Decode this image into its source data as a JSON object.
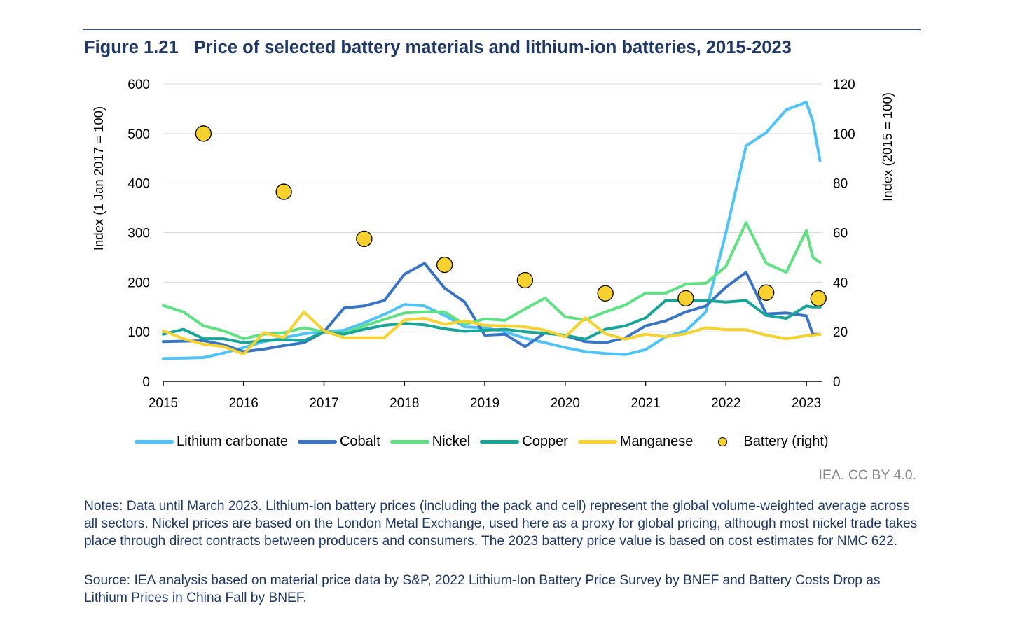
{
  "figure": {
    "number": "Figure 1.21",
    "title": "Price of selected battery materials and lithium-ion batteries, 2015-2023"
  },
  "chart_data": {
    "type": "line",
    "y_left_label": "Index (1 Jan 2017 = 100)",
    "y_right_label": "Index (2015 = 100)",
    "y_left_ticks": [
      "0",
      "100",
      "200",
      "300",
      "400",
      "500",
      "600"
    ],
    "y_right_ticks": [
      "0",
      "20",
      "40",
      "60",
      "80",
      "100",
      "120"
    ],
    "x_tick_labels": [
      "2015",
      "2016",
      "2017",
      "2018",
      "2019",
      "2020",
      "2021",
      "2022",
      "2023"
    ],
    "ylim_left": [
      0,
      600
    ],
    "ylim_right": [
      0,
      120
    ],
    "xlim": [
      2015,
      2023.2
    ],
    "grid": "horizontal",
    "legend_position": "bottom",
    "series": [
      {
        "name": "Lithium carbonate",
        "color": "#4fc3f7",
        "axis": "left",
        "points": [
          [
            2015,
            46
          ],
          [
            2015.25,
            47
          ],
          [
            2015.5,
            48
          ],
          [
            2015.75,
            57
          ],
          [
            2016,
            68
          ],
          [
            2016.25,
            80
          ],
          [
            2016.5,
            88
          ],
          [
            2016.75,
            96
          ],
          [
            2017,
            100
          ],
          [
            2017.25,
            103
          ],
          [
            2017.5,
            118
          ],
          [
            2017.75,
            135
          ],
          [
            2018,
            155
          ],
          [
            2018.25,
            152
          ],
          [
            2018.5,
            133
          ],
          [
            2018.75,
            110
          ],
          [
            2019,
            108
          ],
          [
            2019.25,
            100
          ],
          [
            2019.5,
            87
          ],
          [
            2019.75,
            78
          ],
          [
            2020,
            68
          ],
          [
            2020.25,
            60
          ],
          [
            2020.5,
            56
          ],
          [
            2020.75,
            54
          ],
          [
            2021,
            64
          ],
          [
            2021.25,
            90
          ],
          [
            2021.5,
            102
          ],
          [
            2021.75,
            140
          ],
          [
            2022,
            300
          ],
          [
            2022.25,
            475
          ],
          [
            2022.5,
            502
          ],
          [
            2022.75,
            548
          ],
          [
            2023,
            563
          ],
          [
            2023.08,
            525
          ],
          [
            2023.17,
            445
          ]
        ]
      },
      {
        "name": "Cobalt",
        "color": "#3a75c4",
        "axis": "left",
        "points": [
          [
            2015,
            80
          ],
          [
            2015.25,
            81
          ],
          [
            2015.5,
            82
          ],
          [
            2015.75,
            74
          ],
          [
            2016,
            60
          ],
          [
            2016.25,
            65
          ],
          [
            2016.5,
            72
          ],
          [
            2016.75,
            78
          ],
          [
            2017,
            100
          ],
          [
            2017.25,
            148
          ],
          [
            2017.5,
            152
          ],
          [
            2017.75,
            163
          ],
          [
            2018,
            216
          ],
          [
            2018.25,
            238
          ],
          [
            2018.5,
            188
          ],
          [
            2018.75,
            160
          ],
          [
            2019,
            93
          ],
          [
            2019.25,
            95
          ],
          [
            2019.5,
            70
          ],
          [
            2019.75,
            98
          ],
          [
            2020,
            92
          ],
          [
            2020.25,
            80
          ],
          [
            2020.5,
            78
          ],
          [
            2020.75,
            88
          ],
          [
            2021,
            112
          ],
          [
            2021.25,
            122
          ],
          [
            2021.5,
            140
          ],
          [
            2021.75,
            152
          ],
          [
            2022,
            190
          ],
          [
            2022.25,
            220
          ],
          [
            2022.5,
            136
          ],
          [
            2022.75,
            138
          ],
          [
            2023,
            132
          ],
          [
            2023.08,
            95
          ],
          [
            2023.17,
            95
          ]
        ]
      },
      {
        "name": "Nickel",
        "color": "#5fe083",
        "axis": "left",
        "points": [
          [
            2015,
            153
          ],
          [
            2015.25,
            140
          ],
          [
            2015.5,
            112
          ],
          [
            2015.75,
            102
          ],
          [
            2016,
            86
          ],
          [
            2016.25,
            95
          ],
          [
            2016.5,
            98
          ],
          [
            2016.75,
            108
          ],
          [
            2017,
            100
          ],
          [
            2017.25,
            97
          ],
          [
            2017.5,
            112
          ],
          [
            2017.75,
            125
          ],
          [
            2018,
            138
          ],
          [
            2018.25,
            140
          ],
          [
            2018.5,
            140
          ],
          [
            2018.75,
            115
          ],
          [
            2019,
            126
          ],
          [
            2019.25,
            123
          ],
          [
            2019.5,
            146
          ],
          [
            2019.75,
            168
          ],
          [
            2020,
            130
          ],
          [
            2020.25,
            124
          ],
          [
            2020.5,
            140
          ],
          [
            2020.75,
            154
          ],
          [
            2021,
            178
          ],
          [
            2021.25,
            178
          ],
          [
            2021.5,
            196
          ],
          [
            2021.75,
            198
          ],
          [
            2022,
            232
          ],
          [
            2022.25,
            320
          ],
          [
            2022.5,
            238
          ],
          [
            2022.75,
            220
          ],
          [
            2023,
            304
          ],
          [
            2023.08,
            250
          ],
          [
            2023.17,
            240
          ]
        ]
      },
      {
        "name": "Copper",
        "color": "#16a596",
        "axis": "left",
        "points": [
          [
            2015,
            95
          ],
          [
            2015.25,
            105
          ],
          [
            2015.5,
            86
          ],
          [
            2015.75,
            86
          ],
          [
            2016,
            78
          ],
          [
            2016.25,
            82
          ],
          [
            2016.5,
            84
          ],
          [
            2016.75,
            82
          ],
          [
            2017,
            100
          ],
          [
            2017.25,
            95
          ],
          [
            2017.5,
            105
          ],
          [
            2017.75,
            113
          ],
          [
            2018,
            117
          ],
          [
            2018.25,
            114
          ],
          [
            2018.5,
            106
          ],
          [
            2018.75,
            101
          ],
          [
            2019,
            103
          ],
          [
            2019.25,
            105
          ],
          [
            2019.5,
            100
          ],
          [
            2019.75,
            97
          ],
          [
            2020,
            93
          ],
          [
            2020.25,
            85
          ],
          [
            2020.5,
            105
          ],
          [
            2020.75,
            112
          ],
          [
            2021,
            128
          ],
          [
            2021.25,
            163
          ],
          [
            2021.5,
            162
          ],
          [
            2021.75,
            163
          ],
          [
            2022,
            160
          ],
          [
            2022.25,
            163
          ],
          [
            2022.5,
            133
          ],
          [
            2022.75,
            127
          ],
          [
            2023,
            152
          ],
          [
            2023.08,
            150
          ],
          [
            2023.17,
            150
          ]
        ]
      },
      {
        "name": "Manganese",
        "color": "#f7d12e",
        "axis": "left",
        "points": [
          [
            2015,
            102
          ],
          [
            2015.25,
            86
          ],
          [
            2015.5,
            75
          ],
          [
            2015.75,
            70
          ],
          [
            2016,
            55
          ],
          [
            2016.25,
            98
          ],
          [
            2016.5,
            88
          ],
          [
            2016.75,
            140
          ],
          [
            2017,
            102
          ],
          [
            2017.25,
            88
          ],
          [
            2017.5,
            88
          ],
          [
            2017.75,
            88
          ],
          [
            2018,
            124
          ],
          [
            2018.25,
            127
          ],
          [
            2018.5,
            115
          ],
          [
            2018.75,
            122
          ],
          [
            2019,
            113
          ],
          [
            2019.25,
            112
          ],
          [
            2019.5,
            110
          ],
          [
            2019.75,
            103
          ],
          [
            2020,
            90
          ],
          [
            2020.25,
            128
          ],
          [
            2020.5,
            96
          ],
          [
            2020.75,
            85
          ],
          [
            2021,
            95
          ],
          [
            2021.25,
            90
          ],
          [
            2021.5,
            96
          ],
          [
            2021.75,
            108
          ],
          [
            2022,
            104
          ],
          [
            2022.25,
            104
          ],
          [
            2022.5,
            93
          ],
          [
            2022.75,
            86
          ],
          [
            2023,
            92
          ],
          [
            2023.08,
            93
          ],
          [
            2023.17,
            95
          ]
        ]
      },
      {
        "name": "Battery (right)",
        "color": "#f7d12e",
        "axis": "right",
        "style": "marker",
        "points": [
          [
            2015.5,
            100
          ],
          [
            2016.5,
            76.5
          ],
          [
            2017.5,
            57.5
          ],
          [
            2018.5,
            47
          ],
          [
            2019.5,
            40.8
          ],
          [
            2020.5,
            35.5
          ],
          [
            2021.5,
            33.5
          ],
          [
            2022.5,
            35.8
          ],
          [
            2023.15,
            33.5
          ]
        ]
      }
    ]
  },
  "credit": "IEA. CC BY 4.0.",
  "notes": "Notes: Data until March 2023. Lithium-ion battery prices (including the pack and cell) represent the global volume-weighted average across all sectors. Nickel prices are based on the London Metal Exchange, used here as a proxy for global pricing, although most nickel trade takes place through direct contracts between producers and consumers. The 2023 battery price value is based on cost estimates for NMC 622.",
  "source": "Source: IEA analysis based on material price data by S&P, 2022 Lithium-Ion Battery Price Survey by BNEF and Battery Costs Drop as Lithium Prices in China Fall by BNEF."
}
